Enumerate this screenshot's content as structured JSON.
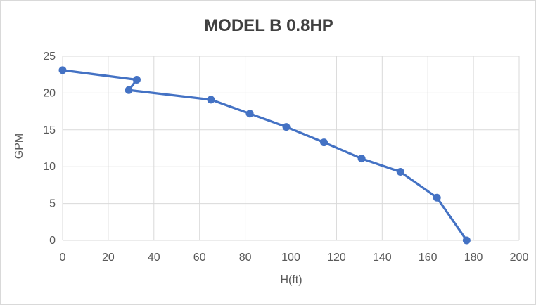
{
  "window": {
    "background": "#FFFFFF",
    "border_color": "#D9D9D9"
  },
  "chart_data": {
    "type": "line",
    "title": "MODEL B 0.8HP",
    "xlabel": "H(ft)",
    "ylabel": "GPM",
    "x": [
      0,
      32.5,
      29,
      65,
      82,
      98,
      114.5,
      131,
      148,
      164,
      177
    ],
    "y": [
      23.1,
      21.8,
      20.4,
      19.1,
      17.2,
      15.4,
      13.3,
      11.1,
      9.3,
      5.8,
      0
    ],
    "xlim": [
      0,
      200
    ],
    "ylim": [
      0,
      25
    ],
    "xticks": [
      0,
      20,
      40,
      60,
      80,
      100,
      120,
      140,
      160,
      180,
      200
    ],
    "yticks": [
      0,
      5,
      10,
      15,
      20,
      25
    ],
    "grid": true,
    "legend": false,
    "line_color": "#4472C4",
    "marker_color": "#4472C4",
    "marker_shape": "circle",
    "grid_color": "#D9D9D9",
    "title_color": "#404040",
    "axis_text_color": "#595959"
  }
}
